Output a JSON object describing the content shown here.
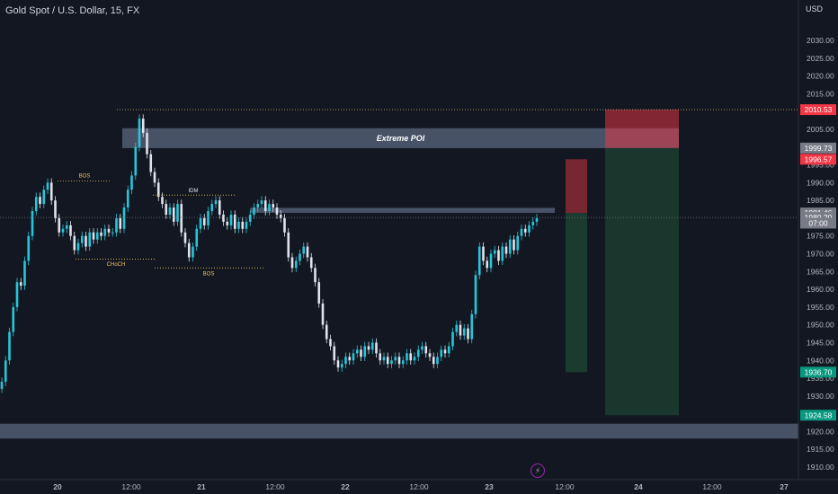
{
  "header": {
    "title": "Gold Spot / U.S. Dollar, 15, FX",
    "currency": "USD"
  },
  "chart_data": {
    "type": "candlestick",
    "y_ticks": [
      1910,
      1915,
      1920,
      1925,
      1930,
      1935,
      1940,
      1945,
      1950,
      1955,
      1960,
      1965,
      1970,
      1975,
      1980,
      1985,
      1990,
      1995,
      2000,
      2005,
      2010,
      2015,
      2020,
      2025,
      2030
    ],
    "x_ticks": [
      "20",
      "12:00",
      "21",
      "12:00",
      "22",
      "12:00",
      "23",
      "12:00",
      "24",
      "12:00",
      "27"
    ],
    "price_labels": [
      {
        "text": "2010.53",
        "value": 2010.53,
        "color": "#f23645"
      },
      {
        "text": "1999.73",
        "value": 1999.73,
        "color": "#787b86"
      },
      {
        "text": "1996.57",
        "value": 1996.57,
        "color": "#f23645"
      },
      {
        "text": "1981.46",
        "value": 1981.46,
        "color": "#787b86"
      },
      {
        "text": "1980.20",
        "value": 1980.2,
        "color": "#787b86"
      },
      {
        "text": "07:00",
        "value": 1978.6,
        "color": "#787b86"
      },
      {
        "text": "1936.70",
        "value": 1936.7,
        "color": "#089981"
      },
      {
        "text": "1924.58",
        "value": 1924.58,
        "color": "#089981"
      }
    ],
    "zones": [
      {
        "label": "Extreme POI",
        "from": 1999.7,
        "to": 2005.3
      },
      {
        "label": "",
        "from": 1981.5,
        "to": 1982.9
      },
      {
        "label": "",
        "from": 1918.0,
        "to": 1922.2
      }
    ],
    "annotations": [
      "BOS",
      "CHoCH",
      "IDM",
      "BOS"
    ],
    "close_series": [
      1934,
      1940,
      1948,
      1955,
      1962,
      1961,
      1968,
      1975,
      1982,
      1986,
      1984,
      1988,
      1990,
      1985,
      1980,
      1976,
      1977,
      1978,
      1975,
      1971,
      1973,
      1975,
      1972,
      1976,
      1974,
      1976,
      1975,
      1977,
      1976,
      1976,
      1980,
      1977,
      1983,
      1988,
      1992,
      2000,
      2008,
      2004,
      1998,
      1993,
      1990,
      1986,
      1984,
      1981,
      1983,
      1979,
      1984,
      1976,
      1973,
      1969,
      1972,
      1977,
      1980,
      1978,
      1982,
      1984,
      1985,
      1981,
      1979,
      1978,
      1981,
      1977,
      1979,
      1977,
      1979,
      1981,
      1983,
      1984,
      1985,
      1982,
      1984,
      1983,
      1981,
      1980,
      1976,
      1969,
      1966,
      1968,
      1970,
      1972,
      1969,
      1966,
      1962,
      1956,
      1950,
      1946,
      1944,
      1940,
      1938,
      1939,
      1941,
      1940,
      1942,
      1943,
      1941,
      1944,
      1943,
      1945,
      1942,
      1940,
      1941,
      1939,
      1940,
      1941,
      1939,
      1940,
      1942,
      1940,
      1941,
      1943,
      1944,
      1942,
      1941,
      1939,
      1941,
      1943,
      1942,
      1944,
      1948,
      1950,
      1947,
      1949,
      1946,
      1953,
      1964,
      1972,
      1968,
      1966,
      1970,
      1971,
      1968,
      1972,
      1970,
      1974,
      1971,
      1975,
      1977,
      1976,
      1978,
      1979,
      1980
    ]
  }
}
